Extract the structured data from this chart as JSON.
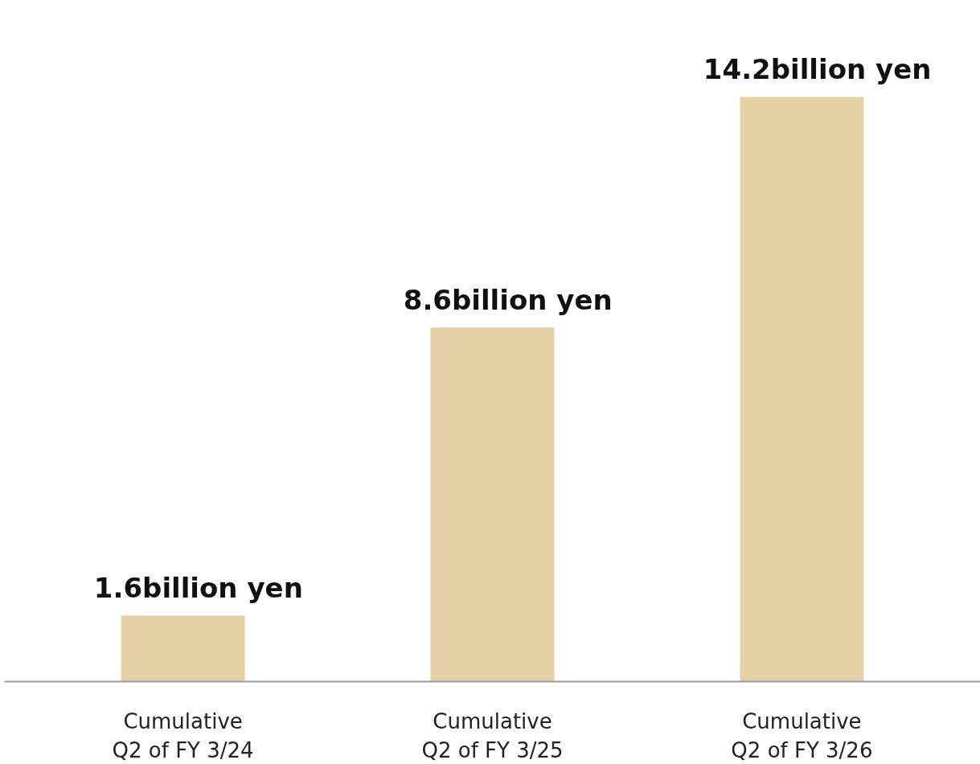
{
  "chart_data": {
    "type": "bar",
    "categories": [
      "Cumulative\nQ2 of FY 3/24",
      "Cumulative\nQ2 of FY 3/25",
      "Cumulative\nQ2 of FY 3/26"
    ],
    "values": [
      1.6,
      8.6,
      14.2
    ],
    "color": "#e5d0a6",
    "value_labels": [
      "1.6billion yen",
      "8.6billion yen",
      "14.2billion yen"
    ]
  }
}
